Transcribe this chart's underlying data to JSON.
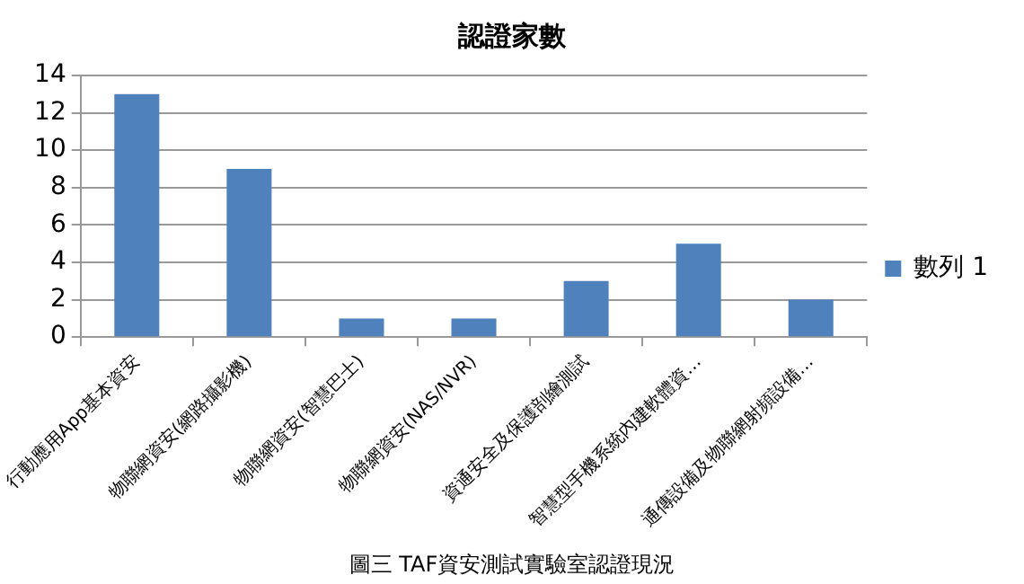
{
  "chart_data": {
    "type": "bar",
    "title": "認證家數",
    "categories": [
      "行動應用App基本資安",
      "物聯網資安(網路攝影機)",
      "物聯網資安(智慧巴士)",
      "物聯網資安(NAS/NVR)",
      "資通安全及保護剖繪測試",
      "智慧型手機系統內建軟體資…",
      "通傳設備及物聯網射頻設備…"
    ],
    "series": [
      {
        "name": "數列 1",
        "color": "#4f81bd",
        "values": [
          13,
          9,
          1,
          1,
          3,
          5,
          2
        ]
      }
    ],
    "ylim": [
      0,
      14
    ],
    "yticks": [
      0,
      2,
      4,
      6,
      8,
      10,
      12,
      14
    ],
    "grid": "y",
    "legend": "right",
    "annotations": [
      "圖三 TAF資安測試實驗室認證現況"
    ]
  }
}
